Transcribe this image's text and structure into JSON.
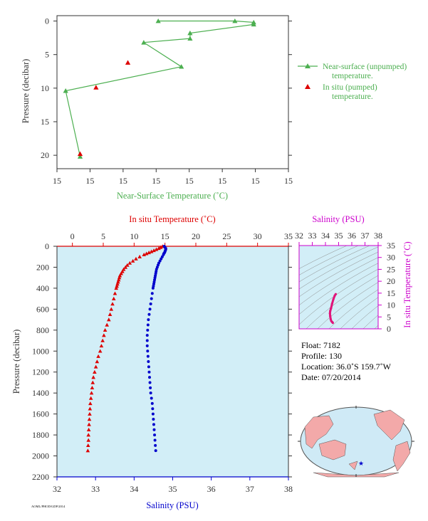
{
  "colors": {
    "near_surface": "#4caf50",
    "in_situ_temp": "#dd0000",
    "salinity": "#0000cc",
    "salinity_axis": "#cc00cc",
    "profile_inset": "#e0157a",
    "plot_bg": "#d2eef7",
    "axis_dark": "#333333",
    "land": "#f3a9a9",
    "ocean": "#cfeaf6"
  },
  "chart_data": [
    {
      "type": "line",
      "xlabel": "Near-Surface Temperature (˚C)",
      "ylabel": "Pressure (decibar)",
      "x_tick_labels": [
        "15",
        "15",
        "15",
        "15",
        "15",
        "15",
        "15",
        "15"
      ],
      "y_ticks": [
        "0",
        "5",
        "10",
        "15",
        "20"
      ],
      "xlim": [
        14.0,
        15.6
      ],
      "ylim": [
        22,
        -0.8
      ],
      "legend_position": "right",
      "series": [
        {
          "name": "Near-surface (unpumped) temperature.",
          "legend_lines": [
            "Near-surface (unpumped)",
            "temperature."
          ],
          "marker": "triangle",
          "x": [
            14.7,
            15.23,
            15.36,
            15.36,
            14.92,
            14.92,
            14.6,
            14.86,
            14.06,
            14.16
          ],
          "y": [
            0.0,
            0.0,
            0.2,
            0.5,
            1.8,
            2.6,
            3.2,
            6.8,
            10.4,
            20.2
          ]
        },
        {
          "name": "In situ (pumped) temperature.",
          "legend_lines": [
            "In situ (pumped)",
            "temperature."
          ],
          "marker": "triangle",
          "x": [
            14.49,
            14.27,
            14.16
          ],
          "y": [
            6.2,
            9.9,
            19.8
          ]
        }
      ]
    },
    {
      "type": "scatter",
      "x_top_label": "In situ Temperature (˚C)",
      "x_bottom_label": "Salinity (PSU)",
      "ylabel": "Pressure (decibar)",
      "x_top_ticks": [
        "0",
        "5",
        "10",
        "15",
        "20",
        "25",
        "30",
        "35"
      ],
      "x_bottom_ticks": [
        "32",
        "33",
        "34",
        "35",
        "36",
        "37",
        "38"
      ],
      "y_ticks": [
        "0",
        "200",
        "400",
        "600",
        "800",
        "1000",
        "1200",
        "1400",
        "1600",
        "1800",
        "2000",
        "2200"
      ],
      "temperature_xlim": [
        -2.5,
        35
      ],
      "salinity_xlim": [
        32,
        38
      ],
      "ylim": [
        2200,
        0
      ],
      "series": [
        {
          "name": "In situ Temperature",
          "marker": "triangle",
          "pressure": [
            0,
            10,
            20,
            30,
            40,
            50,
            60,
            70,
            80,
            100,
            120,
            140,
            160,
            180,
            200,
            220,
            240,
            260,
            280,
            300,
            320,
            340,
            360,
            380,
            400,
            450,
            500,
            550,
            600,
            650,
            700,
            750,
            800,
            850,
            900,
            950,
            1000,
            1050,
            1100,
            1150,
            1200,
            1250,
            1300,
            1350,
            1400,
            1450,
            1500,
            1550,
            1600,
            1650,
            1700,
            1750,
            1800,
            1850,
            1900,
            1950
          ],
          "values": [
            14.6,
            14.3,
            14.0,
            13.6,
            13.2,
            12.8,
            12.4,
            12.0,
            11.6,
            10.9,
            10.3,
            9.8,
            9.3,
            8.9,
            8.6,
            8.3,
            8.1,
            7.9,
            7.7,
            7.6,
            7.5,
            7.4,
            7.3,
            7.2,
            7.1,
            6.9,
            6.7,
            6.5,
            6.3,
            6.1,
            5.9,
            5.6,
            5.3,
            5.1,
            4.9,
            4.7,
            4.5,
            4.2,
            4.0,
            3.8,
            3.6,
            3.4,
            3.3,
            3.2,
            3.1,
            3.0,
            2.9,
            2.85,
            2.8,
            2.75,
            2.7,
            2.65,
            2.6,
            2.6,
            2.55,
            2.5
          ]
        },
        {
          "name": "Salinity",
          "marker": "circle",
          "pressure": [
            0,
            10,
            20,
            30,
            40,
            50,
            60,
            70,
            80,
            100,
            120,
            140,
            160,
            180,
            200,
            220,
            240,
            260,
            280,
            300,
            320,
            340,
            360,
            380,
            400,
            450,
            500,
            550,
            600,
            650,
            700,
            750,
            800,
            850,
            900,
            950,
            1000,
            1050,
            1100,
            1150,
            1200,
            1250,
            1300,
            1350,
            1400,
            1450,
            1500,
            1550,
            1600,
            1650,
            1700,
            1750,
            1800,
            1850,
            1900,
            1950
          ],
          "values": [
            34.78,
            34.8,
            34.82,
            34.82,
            34.81,
            34.8,
            34.79,
            34.77,
            34.76,
            34.73,
            34.7,
            34.67,
            34.64,
            34.62,
            34.6,
            34.58,
            34.57,
            34.56,
            34.55,
            34.54,
            34.53,
            34.52,
            34.51,
            34.5,
            34.49,
            34.47,
            34.45,
            34.43,
            34.41,
            34.39,
            34.37,
            34.36,
            34.35,
            34.34,
            34.34,
            34.34,
            34.35,
            34.36,
            34.37,
            34.38,
            34.39,
            34.4,
            34.41,
            34.42,
            34.43,
            34.45,
            34.47,
            34.48,
            34.49,
            34.5,
            34.51,
            34.52,
            34.53,
            34.54,
            34.55,
            34.56
          ]
        }
      ]
    },
    {
      "type": "scatter",
      "title": "Salinity (PSU)",
      "ylabel": "In situ Temperature (˚C)",
      "x_ticks": [
        "32",
        "33",
        "34",
        "35",
        "36",
        "37",
        "38"
      ],
      "y_ticks": [
        "0",
        "5",
        "10",
        "15",
        "20",
        "25",
        "30",
        "35"
      ],
      "xlim": [
        32,
        38
      ],
      "ylim": [
        0,
        35
      ],
      "series": [
        {
          "name": "T-S profile",
          "marker": "dot",
          "salinity": [
            34.56,
            34.52,
            34.45,
            34.4,
            34.36,
            34.34,
            34.36,
            34.42,
            34.5,
            34.6,
            34.7,
            34.78
          ],
          "temperature": [
            2.5,
            2.8,
            3.2,
            4.0,
            5.3,
            6.5,
            7.5,
            8.6,
            10.5,
            12.4,
            13.9,
            14.6
          ]
        }
      ]
    }
  ],
  "info": {
    "float": "Float:  7182",
    "profile": "Profile:  130",
    "location": "Location:  36.0˚S  159.7˚W",
    "date": "Date:  07/20/2014"
  },
  "map": {
    "marker": "star"
  },
  "footnote": "AOML/PHOD/GDP/2014"
}
